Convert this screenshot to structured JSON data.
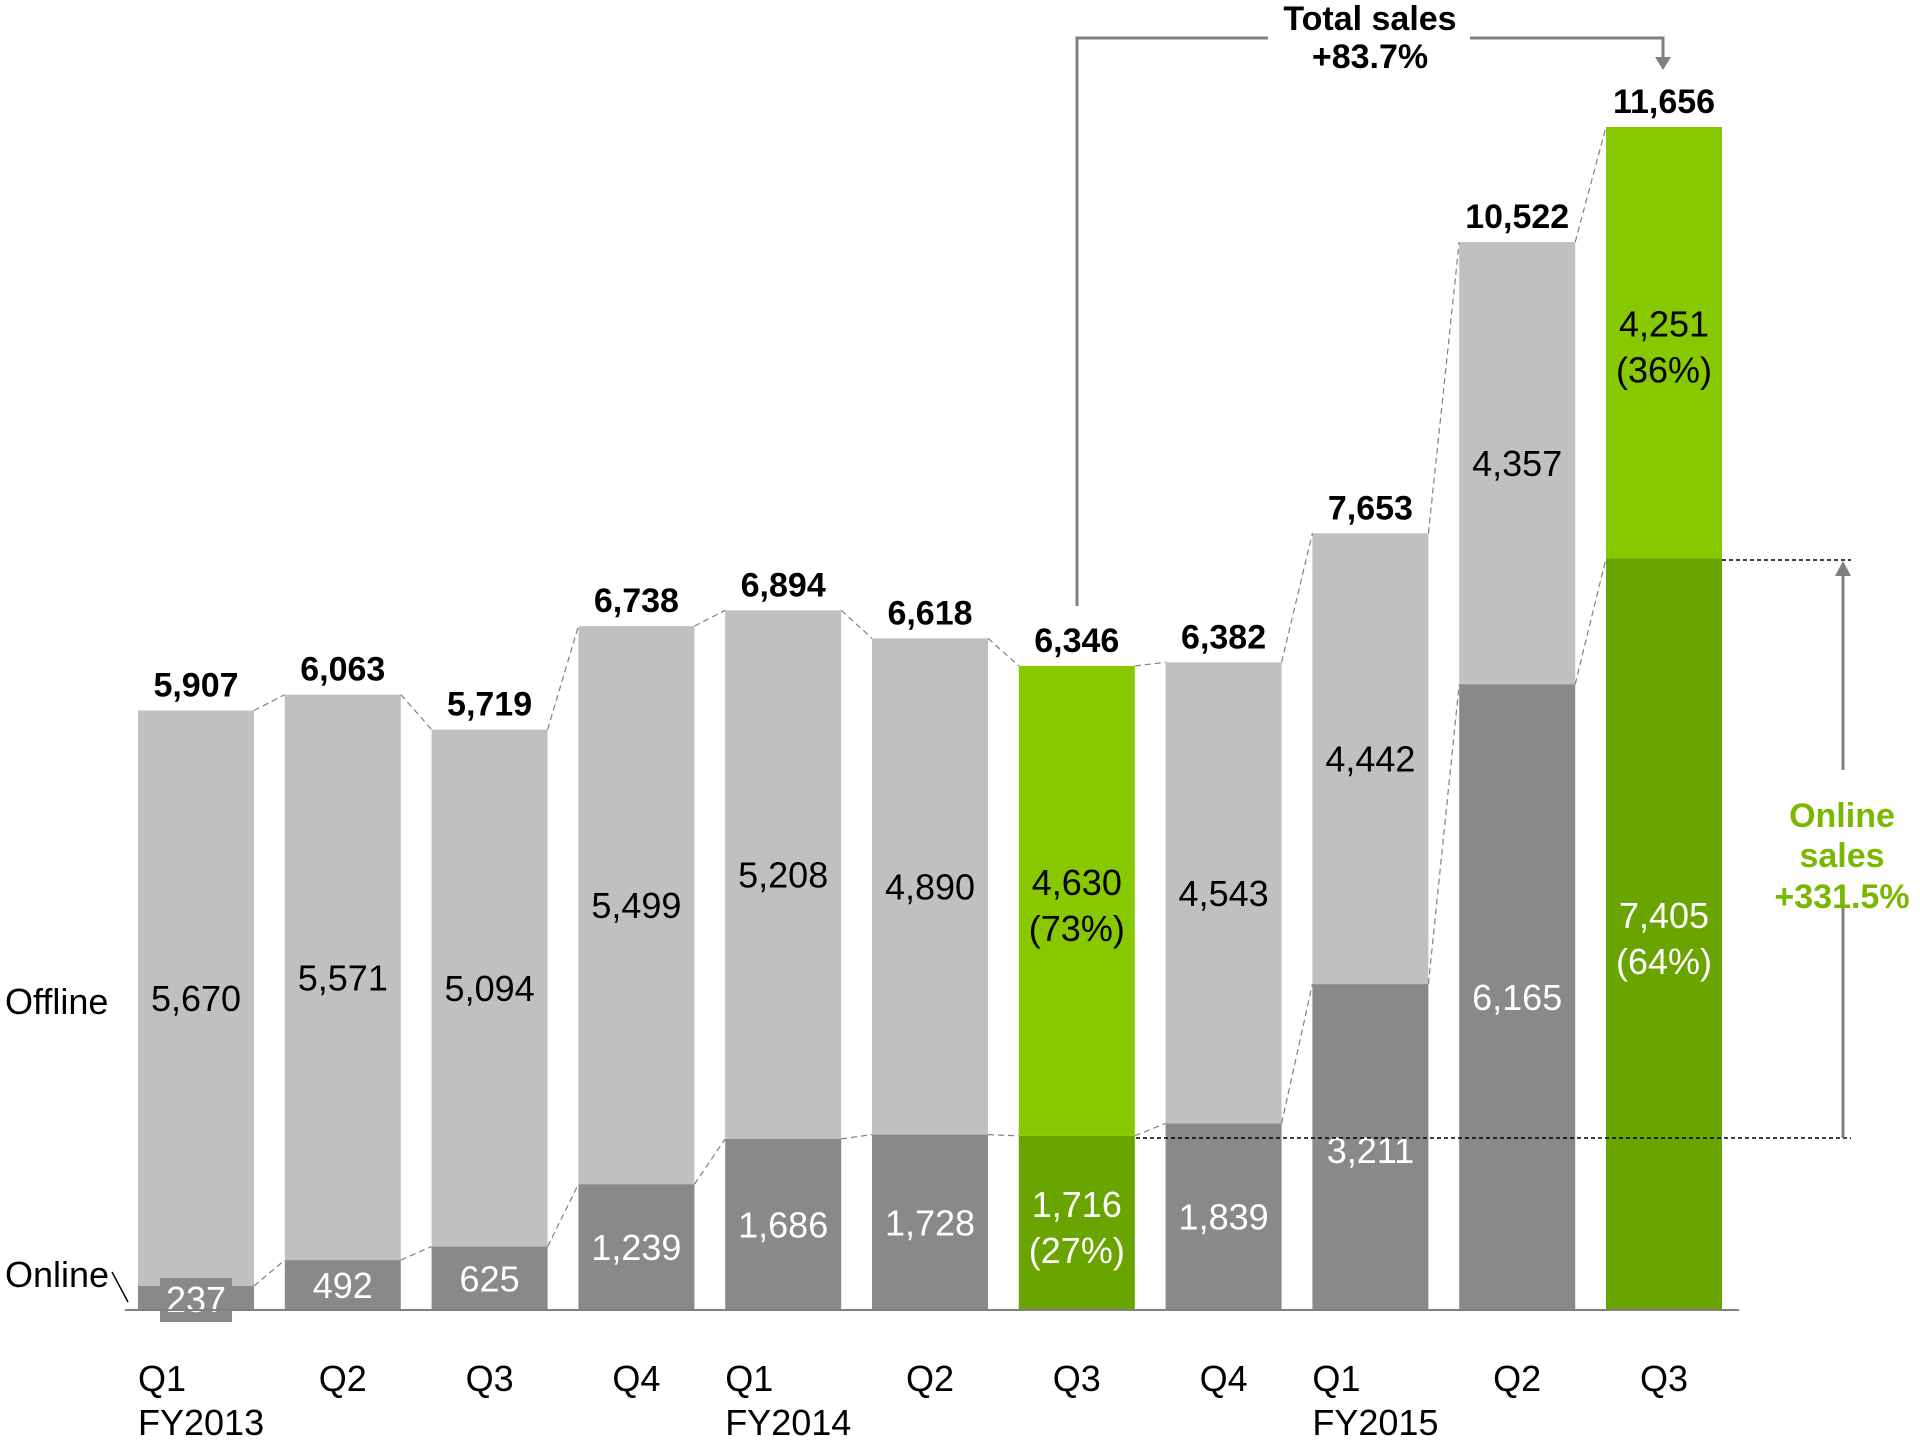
{
  "chart_data": {
    "type": "bar",
    "stacked": true,
    "categories": [
      "Q1 FY2013",
      "Q2",
      "Q3",
      "Q4",
      "Q1 FY2014",
      "Q2",
      "Q3",
      "Q4",
      "Q1 FY2015",
      "Q2",
      "Q3"
    ],
    "tick_labels": [
      {
        "q": "Q1",
        "fy": "FY2013"
      },
      {
        "q": "Q2",
        "fy": ""
      },
      {
        "q": "Q3",
        "fy": ""
      },
      {
        "q": "Q4",
        "fy": ""
      },
      {
        "q": "Q1",
        "fy": "FY2014"
      },
      {
        "q": "Q2",
        "fy": ""
      },
      {
        "q": "Q3",
        "fy": ""
      },
      {
        "q": "Q4",
        "fy": ""
      },
      {
        "q": "Q1",
        "fy": "FY2015"
      },
      {
        "q": "Q2",
        "fy": ""
      },
      {
        "q": "Q3",
        "fy": ""
      }
    ],
    "series": [
      {
        "name": "Online",
        "values": [
          237,
          492,
          625,
          1239,
          1686,
          1728,
          1716,
          1839,
          3211,
          6165,
          7405
        ],
        "labels": [
          "237",
          "492",
          "625",
          "1,239",
          "1,686",
          "1,728",
          "1,716",
          "1,839",
          "3,211",
          "6,165",
          "7,405"
        ],
        "pct": [
          "",
          "",
          "",
          "",
          "",
          "",
          "(27%)",
          "",
          "",
          "",
          "(64%)"
        ]
      },
      {
        "name": "Offline",
        "values": [
          5670,
          5571,
          5094,
          5499,
          5208,
          4890,
          4630,
          4543,
          4442,
          4357,
          4251
        ],
        "labels": [
          "5,670",
          "5,571",
          "5,094",
          "5,499",
          "5,208",
          "4,890",
          "4,630",
          "4,543",
          "4,442",
          "4,357",
          "4,251"
        ],
        "pct": [
          "",
          "",
          "",
          "",
          "",
          "",
          "(73%)",
          "",
          "",
          "",
          "(36%)"
        ]
      }
    ],
    "totals": [
      5907,
      6063,
      5719,
      6738,
      6894,
      6618,
      6346,
      6382,
      7653,
      10522,
      11656
    ],
    "total_labels": [
      "5,907",
      "6,063",
      "5,719",
      "6,738",
      "6,894",
      "6,618",
      "6,346",
      "6,382",
      "7,653",
      "10,522",
      "11,656"
    ],
    "highlighted": [
      6,
      10
    ],
    "ylim": [
      0,
      11656
    ],
    "grid": false,
    "annotations": {
      "total_title": "Total sales",
      "total_change": "+83.7%",
      "online_line1": "Online",
      "online_line2": "sales",
      "online_change": "+331.5%"
    },
    "colors": {
      "offline": "#c0c0c0",
      "online": "#898989",
      "offline_highlight": "#88c800",
      "online_highlight": "#6aa400",
      "annotation_green": "#7ab800",
      "connector": "#808080"
    }
  }
}
